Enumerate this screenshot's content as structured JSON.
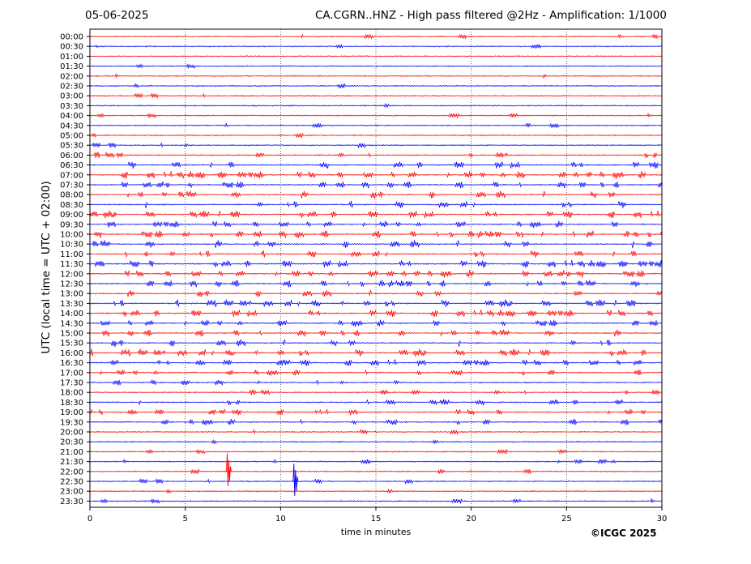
{
  "header": {
    "date": "05-06-2025",
    "station_title": "CA.CGRN..HNZ - High pass filtered @2Hz - Amplification: 1/1000"
  },
  "footer": {
    "copyright": "©ICGC 2025"
  },
  "colors": {
    "red_trace": "#ff0000",
    "blue_trace": "#0000ff",
    "frame": "#000000",
    "grid": "#000000"
  },
  "chart_data": {
    "type": "line",
    "title": "CA.CGRN..HNZ - High pass filtered @2Hz - Amplification: 1/1000",
    "xlabel": "time in minutes",
    "ylabel": "UTC (local time = UTC + 02:00)",
    "xlim": [
      0,
      30
    ],
    "x_ticks": [
      0,
      5,
      10,
      15,
      20,
      25,
      30
    ],
    "grid": "vertical dotted lines at 5-minute intervals",
    "row_labels": [
      "00:00",
      "00:30",
      "01:00",
      "01:30",
      "02:00",
      "02:30",
      "03:00",
      "03:30",
      "04:00",
      "04:30",
      "05:00",
      "05:30",
      "06:00",
      "06:30",
      "07:00",
      "07:30",
      "08:00",
      "08:30",
      "09:00",
      "09:30",
      "10:00",
      "10:30",
      "11:00",
      "11:30",
      "12:00",
      "12:30",
      "13:00",
      "13:30",
      "14:00",
      "14:30",
      "15:00",
      "15:30",
      "16:00",
      "16:30",
      "17:00",
      "17:30",
      "18:00",
      "18:30",
      "19:00",
      "19:30",
      "20:00",
      "20:30",
      "21:00",
      "21:30",
      "22:00",
      "22:30",
      "23:00",
      "23:30"
    ],
    "trace_colors": "alternating red (full hours) and blue (half hours)",
    "notable_events": [
      {
        "row": "22:00",
        "x_minutes": 7.2
      },
      {
        "row": "22:30",
        "x_minutes": 10.7
      }
    ]
  }
}
